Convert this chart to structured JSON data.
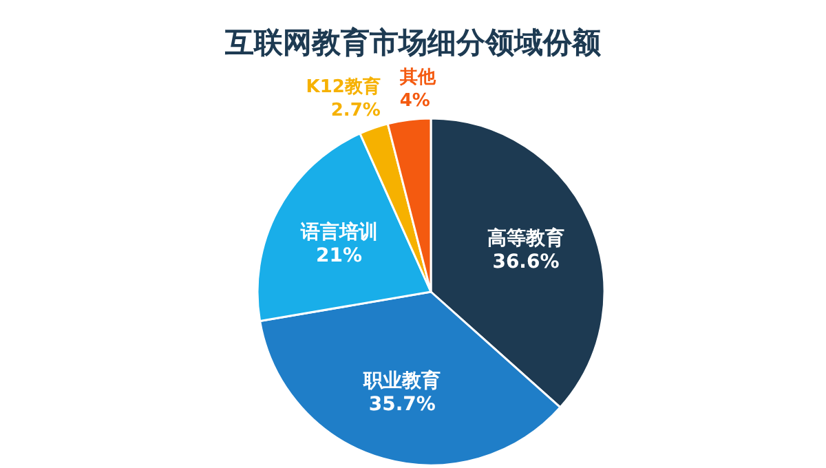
{
  "chart_data": {
    "type": "pie",
    "title": "互联网教育市场细分领域份额",
    "categories": [
      "高等教育",
      "职业教育",
      "语言培训",
      "K12教育",
      "其他"
    ],
    "values": [
      36.6,
      35.7,
      21,
      2.7,
      4
    ],
    "value_labels": [
      "36.6%",
      "35.7%",
      "21%",
      "2.7%",
      "4%"
    ],
    "colors": [
      "#1d3a52",
      "#1f7ec8",
      "#19aee9",
      "#f6b100",
      "#f45a10"
    ],
    "legend": false
  }
}
